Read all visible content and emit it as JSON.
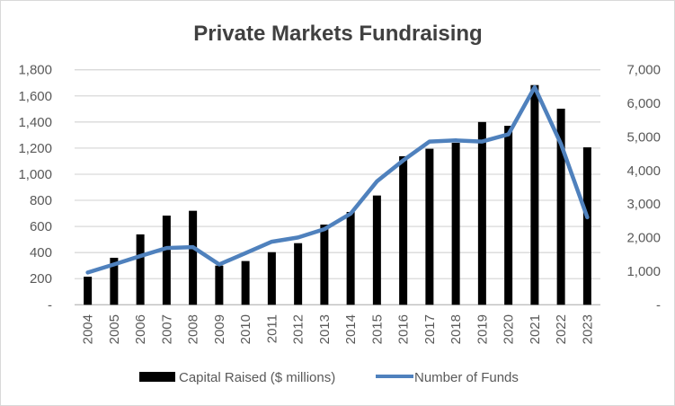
{
  "chart_data": {
    "type": "bar",
    "title": "Private Markets Fundraising",
    "categories": [
      "2004",
      "2005",
      "2006",
      "2007",
      "2008",
      "2009",
      "2010",
      "2011",
      "2012",
      "2013",
      "2014",
      "2015",
      "2016",
      "2017",
      "2018",
      "2019",
      "2020",
      "2021",
      "2022",
      "2023"
    ],
    "series": [
      {
        "name": "Capital Raised ($ millions)",
        "type": "bar",
        "axis": "left",
        "color": "#000000",
        "values": [
          215,
          360,
          539,
          683,
          720,
          300,
          335,
          403,
          472,
          614,
          711,
          837,
          1138,
          1195,
          1241,
          1400,
          1371,
          1683,
          1502,
          1206
        ]
      },
      {
        "name": "Number of Funds",
        "type": "line",
        "axis": "right",
        "color": "#4f81bd",
        "values": [
          962,
          1202,
          1451,
          1691,
          1718,
          1202,
          1539,
          1878,
          2004,
          2252,
          2714,
          3676,
          4301,
          4862,
          4897,
          4862,
          5076,
          6482,
          4790,
          2607
        ]
      }
    ],
    "y_left": {
      "range": [
        0,
        1800
      ],
      "ticks": [
        "-",
        "200",
        "400",
        "600",
        "800",
        "1,000",
        "1,200",
        "1,400",
        "1,600",
        "1,800"
      ]
    },
    "y_right": {
      "range": [
        0,
        7000
      ],
      "ticks": [
        "-",
        "1,000",
        "2,000",
        "3,000",
        "4,000",
        "5,000",
        "6,000",
        "7,000"
      ]
    },
    "grid": true,
    "legend": "bottom"
  }
}
